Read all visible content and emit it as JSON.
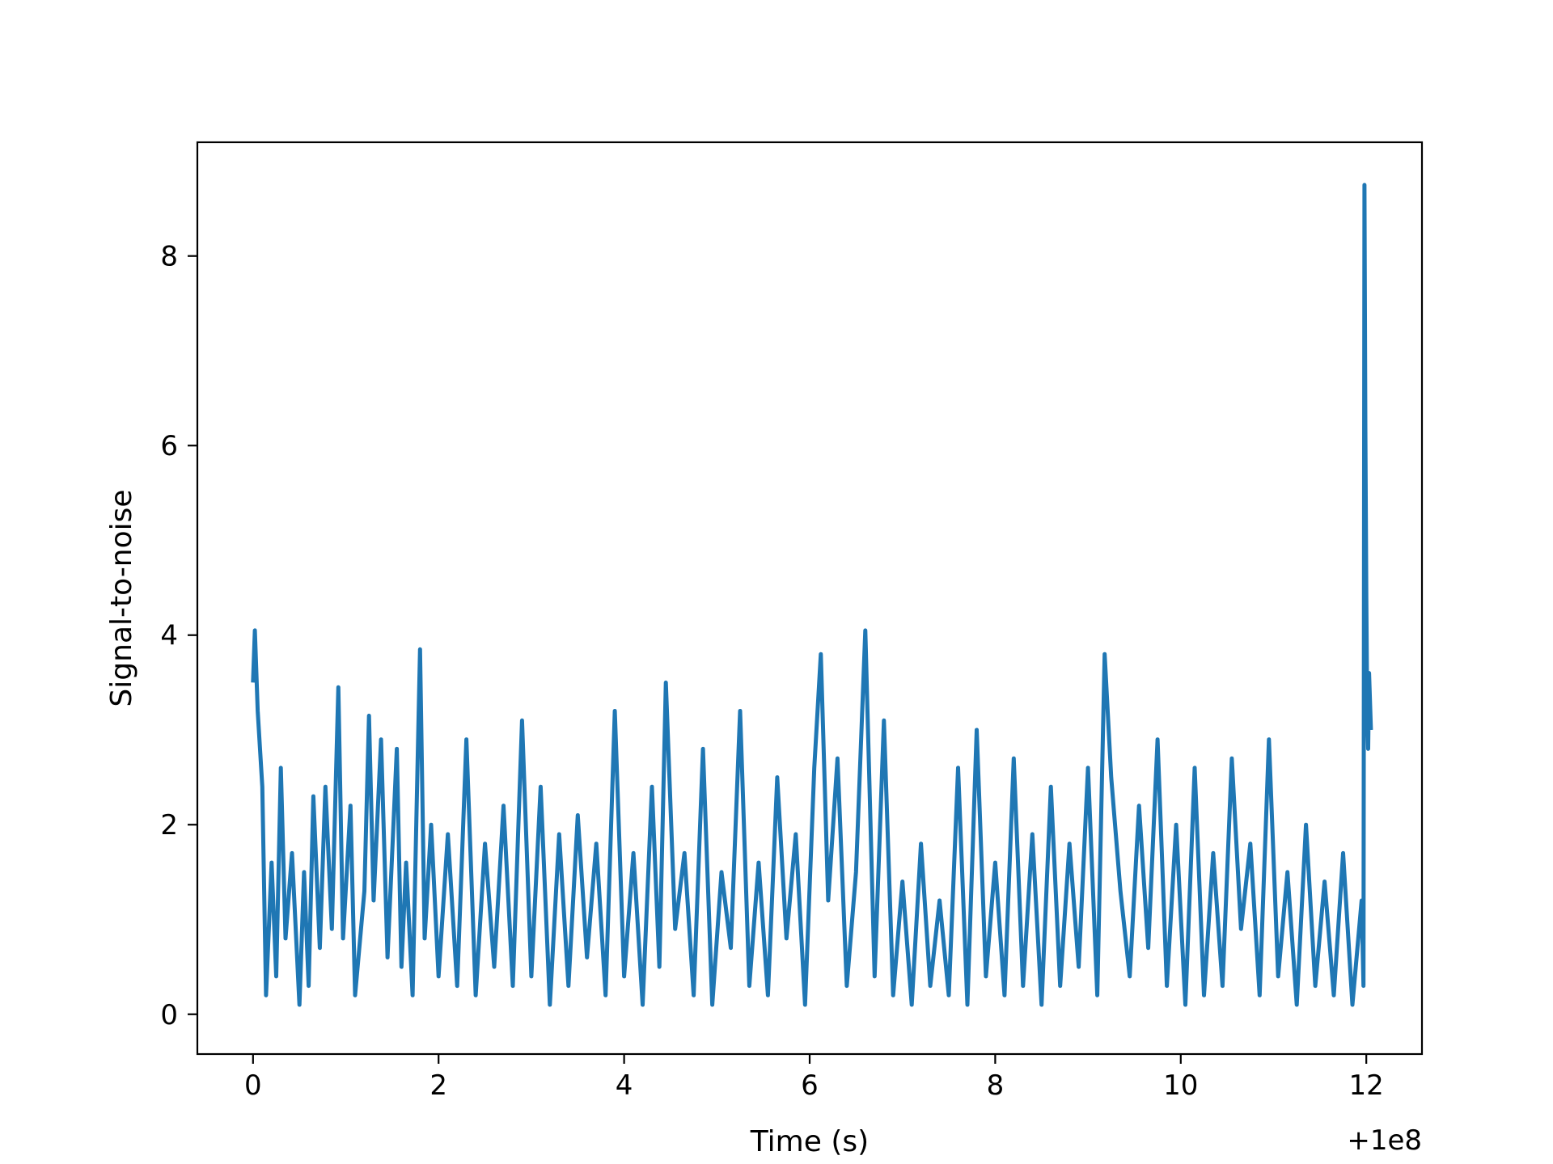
{
  "chart_data": {
    "type": "line",
    "title": "",
    "xlabel": "Time (s)",
    "ylabel": "Signal-to-noise",
    "x_offset_label": "+1e8",
    "xlim": [
      -0.6,
      12.6
    ],
    "ylim": [
      -0.42,
      9.2
    ],
    "x_ticks": [
      0,
      2,
      4,
      6,
      8,
      10,
      12
    ],
    "x_tick_labels": [
      "0",
      "2",
      "4",
      "6",
      "8",
      "10",
      "12"
    ],
    "y_ticks": [
      0,
      2,
      4,
      6,
      8
    ],
    "y_tick_labels": [
      "0",
      "2",
      "4",
      "6",
      "8"
    ],
    "grid": false,
    "legend": "none",
    "line_color": "#1f77b4",
    "series": [
      {
        "x": [
          0.0,
          0.02,
          0.05,
          0.1,
          0.14,
          0.2,
          0.25,
          0.3,
          0.35,
          0.42,
          0.5,
          0.55,
          0.6,
          0.65,
          0.72,
          0.78,
          0.85,
          0.92,
          0.97,
          1.05,
          1.1,
          1.2,
          1.25,
          1.3,
          1.38,
          1.45,
          1.55,
          1.6,
          1.65,
          1.72,
          1.8,
          1.85,
          1.92,
          2.0,
          2.1,
          2.2,
          2.3,
          2.4,
          2.5,
          2.6,
          2.7,
          2.8,
          2.9,
          3.0,
          3.1,
          3.2,
          3.3,
          3.4,
          3.5,
          3.6,
          3.7,
          3.8,
          3.9,
          4.0,
          4.1,
          4.2,
          4.3,
          4.38,
          4.45,
          4.55,
          4.65,
          4.75,
          4.85,
          4.95,
          5.05,
          5.15,
          5.25,
          5.35,
          5.45,
          5.55,
          5.65,
          5.75,
          5.85,
          5.95,
          6.05,
          6.12,
          6.2,
          6.3,
          6.4,
          6.5,
          6.6,
          6.7,
          6.8,
          6.9,
          7.0,
          7.1,
          7.2,
          7.3,
          7.4,
          7.5,
          7.6,
          7.7,
          7.8,
          7.9,
          8.0,
          8.1,
          8.2,
          8.3,
          8.4,
          8.5,
          8.6,
          8.7,
          8.8,
          8.9,
          9.0,
          9.1,
          9.18,
          9.25,
          9.35,
          9.45,
          9.55,
          9.65,
          9.75,
          9.85,
          9.95,
          10.05,
          10.15,
          10.25,
          10.35,
          10.45,
          10.55,
          10.65,
          10.75,
          10.85,
          10.95,
          11.05,
          11.15,
          11.25,
          11.35,
          11.45,
          11.55,
          11.65,
          11.75,
          11.85,
          11.95,
          11.97,
          11.98,
          11.99,
          12.0,
          12.01,
          12.02,
          12.03,
          12.05
        ],
        "y": [
          3.5,
          4.05,
          3.2,
          2.4,
          0.2,
          1.6,
          0.4,
          2.6,
          0.8,
          1.7,
          0.1,
          1.5,
          0.3,
          2.3,
          0.7,
          2.4,
          0.9,
          3.45,
          0.8,
          2.2,
          0.2,
          1.3,
          3.15,
          1.2,
          2.9,
          0.6,
          2.8,
          0.5,
          1.6,
          0.2,
          3.85,
          0.8,
          2.0,
          0.4,
          1.9,
          0.3,
          2.9,
          0.2,
          1.8,
          0.5,
          2.2,
          0.3,
          3.1,
          0.4,
          2.4,
          0.1,
          1.9,
          0.3,
          2.1,
          0.6,
          1.8,
          0.2,
          3.2,
          0.4,
          1.7,
          0.1,
          2.4,
          0.5,
          3.5,
          0.9,
          1.7,
          0.2,
          2.8,
          0.1,
          1.5,
          0.7,
          3.2,
          0.3,
          1.6,
          0.2,
          2.5,
          0.8,
          1.9,
          0.1,
          2.6,
          3.8,
          1.2,
          2.7,
          0.3,
          1.5,
          4.05,
          0.4,
          3.1,
          0.2,
          1.4,
          0.1,
          1.8,
          0.3,
          1.2,
          0.2,
          2.6,
          0.1,
          3.0,
          0.4,
          1.6,
          0.2,
          2.7,
          0.3,
          1.9,
          0.1,
          2.4,
          0.3,
          1.8,
          0.5,
          2.6,
          0.2,
          3.8,
          2.5,
          1.3,
          0.4,
          2.2,
          0.7,
          2.9,
          0.3,
          2.0,
          0.1,
          2.6,
          0.2,
          1.7,
          0.3,
          2.7,
          0.9,
          1.8,
          0.2,
          2.9,
          0.4,
          1.5,
          0.1,
          2.0,
          0.3,
          1.4,
          0.2,
          1.7,
          0.1,
          1.2,
          0.3,
          8.75,
          6.2,
          4.4,
          3.2,
          2.8,
          3.6,
          3.0
        ]
      }
    ]
  }
}
